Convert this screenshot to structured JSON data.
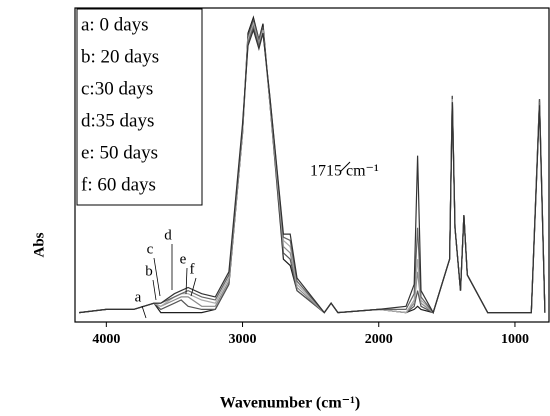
{
  "chart_data": {
    "type": "line",
    "xlabel": "Wavenumber (cm⁻¹)",
    "ylabel": "Abs",
    "xlim": [
      4230,
      750
    ],
    "ylim": [
      0,
      1
    ],
    "xticks": [
      4000,
      3000,
      2000,
      1000
    ],
    "legend": "upper left",
    "x": [
      4200,
      4000,
      3800,
      3650,
      3600,
      3500,
      3450,
      3400,
      3300,
      3200,
      3100,
      3000,
      2960,
      2920,
      2880,
      2850,
      2800,
      2700,
      2650,
      2600,
      2400,
      2350,
      2300,
      2000,
      1800,
      1740,
      1715,
      1690,
      1600,
      1480,
      1460,
      1440,
      1400,
      1375,
      1350,
      1200,
      1000,
      880,
      820,
      780
    ],
    "series": [
      {
        "name": "a: 0 days",
        "color": "#1e1e1e",
        "values": [
          0.03,
          0.04,
          0.04,
          0.06,
          0.03,
          0.03,
          0.03,
          0.03,
          0.03,
          0.04,
          0.12,
          0.6,
          0.92,
          0.97,
          0.9,
          0.95,
          0.7,
          0.2,
          0.18,
          0.1,
          0.03,
          0.06,
          0.03,
          0.04,
          0.03,
          0.04,
          0.05,
          0.04,
          0.03,
          0.2,
          0.72,
          0.3,
          0.1,
          0.34,
          0.15,
          0.03,
          0.03,
          0.03,
          0.71,
          0.03
        ]
      },
      {
        "name": "b: 20 days",
        "color": "#555555",
        "values": [
          0.03,
          0.04,
          0.04,
          0.06,
          0.04,
          0.06,
          0.07,
          0.05,
          0.04,
          0.04,
          0.12,
          0.6,
          0.91,
          0.96,
          0.9,
          0.94,
          0.7,
          0.22,
          0.2,
          0.1,
          0.03,
          0.06,
          0.03,
          0.04,
          0.03,
          0.05,
          0.1,
          0.05,
          0.03,
          0.2,
          0.72,
          0.3,
          0.1,
          0.34,
          0.15,
          0.03,
          0.03,
          0.03,
          0.71,
          0.03
        ]
      },
      {
        "name": "c:30 days",
        "color": "#8a8a8a",
        "values": [
          0.03,
          0.04,
          0.04,
          0.06,
          0.05,
          0.07,
          0.08,
          0.08,
          0.05,
          0.05,
          0.13,
          0.6,
          0.9,
          0.95,
          0.89,
          0.93,
          0.7,
          0.24,
          0.22,
          0.11,
          0.03,
          0.06,
          0.03,
          0.04,
          0.03,
          0.06,
          0.16,
          0.06,
          0.03,
          0.2,
          0.71,
          0.3,
          0.1,
          0.34,
          0.15,
          0.03,
          0.03,
          0.03,
          0.7,
          0.03
        ]
      },
      {
        "name": "d:35 days",
        "color": "#aaaaaa",
        "values": [
          0.03,
          0.04,
          0.04,
          0.06,
          0.05,
          0.08,
          0.09,
          0.09,
          0.07,
          0.06,
          0.14,
          0.61,
          0.9,
          0.95,
          0.88,
          0.93,
          0.71,
          0.26,
          0.24,
          0.12,
          0.03,
          0.06,
          0.03,
          0.04,
          0.03,
          0.07,
          0.2,
          0.07,
          0.03,
          0.2,
          0.71,
          0.3,
          0.1,
          0.34,
          0.15,
          0.03,
          0.03,
          0.03,
          0.7,
          0.03
        ]
      },
      {
        "name": "e: 50 days",
        "color": "#666666",
        "values": [
          0.03,
          0.04,
          0.04,
          0.06,
          0.06,
          0.08,
          0.09,
          0.1,
          0.08,
          0.07,
          0.15,
          0.62,
          0.89,
          0.94,
          0.88,
          0.92,
          0.72,
          0.27,
          0.26,
          0.13,
          0.03,
          0.06,
          0.03,
          0.04,
          0.04,
          0.09,
          0.3,
          0.08,
          0.03,
          0.2,
          0.7,
          0.3,
          0.1,
          0.34,
          0.15,
          0.03,
          0.03,
          0.03,
          0.7,
          0.03
        ]
      },
      {
        "name": "f: 60 days",
        "color": "#333333",
        "values": [
          0.03,
          0.04,
          0.04,
          0.06,
          0.06,
          0.09,
          0.1,
          0.11,
          0.09,
          0.08,
          0.16,
          0.63,
          0.88,
          0.93,
          0.87,
          0.92,
          0.72,
          0.28,
          0.28,
          0.14,
          0.03,
          0.06,
          0.03,
          0.04,
          0.05,
          0.12,
          0.53,
          0.1,
          0.03,
          0.2,
          0.7,
          0.3,
          0.1,
          0.34,
          0.15,
          0.03,
          0.03,
          0.03,
          0.69,
          0.03
        ]
      }
    ],
    "annotations": [
      "a",
      "b",
      "c",
      "d",
      "e",
      "f",
      "1715 cm⁻¹"
    ]
  }
}
